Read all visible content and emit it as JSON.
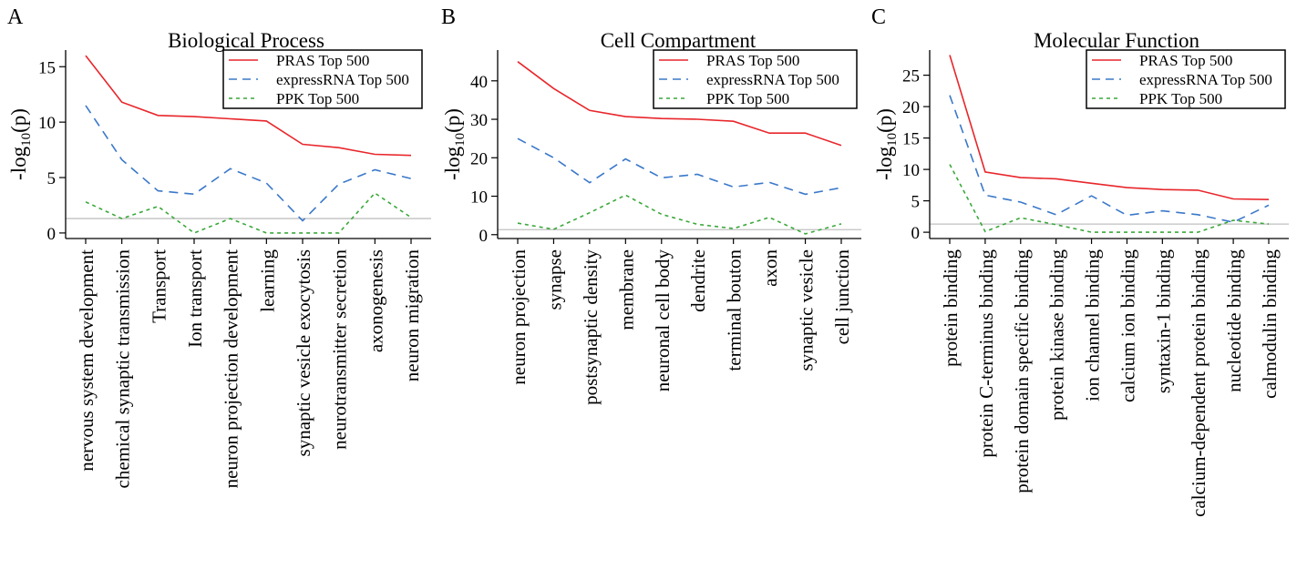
{
  "legend_labels": [
    "PRAS Top 500",
    "expressRNA  Top 500",
    "PPK Top 500"
  ],
  "colors": {
    "PRAS": "#e8262b",
    "expressRNA": "#3a78c9",
    "PPK": "#3aa83a",
    "threshold": "#c0c0c0"
  },
  "chart_data": [
    {
      "type": "line",
      "panel_letter": "A",
      "title": "Biological Process",
      "ylabel_base": "-log",
      "ylabel_sub": "10",
      "ylabel_tail": "(p)",
      "ylim": [
        -0.5,
        16.5
      ],
      "yticks": [
        0,
        5,
        10,
        15
      ],
      "threshold": 1.3,
      "legend": "top-right",
      "categories": [
        "nervous system development",
        "chemical synaptic transmission",
        "Transport",
        "Ion transport",
        "neuron projection development",
        "learning",
        "synaptic vesicle exocytosis",
        "neurotransmitter secretion",
        "axonogenesis",
        "neuron migration"
      ],
      "series": [
        {
          "name": "PRAS Top 500",
          "values": [
            16.0,
            11.8,
            10.6,
            10.5,
            10.3,
            10.1,
            8.0,
            7.7,
            7.1,
            7.0
          ]
        },
        {
          "name": "expressRNA  Top 500",
          "values": [
            11.5,
            6.6,
            3.8,
            3.5,
            5.8,
            4.5,
            1.1,
            4.4,
            5.7,
            4.9
          ]
        },
        {
          "name": "PPK Top 500",
          "values": [
            2.8,
            1.3,
            2.4,
            0.0,
            1.3,
            0.0,
            0.0,
            0.0,
            3.6,
            1.4
          ]
        }
      ]
    },
    {
      "type": "line",
      "panel_letter": "B",
      "title": "Cell Compartment",
      "ylabel_base": "-log",
      "ylabel_sub": "10",
      "ylabel_tail": "(p)",
      "ylim": [
        -1,
        48
      ],
      "yticks": [
        0,
        10,
        20,
        30,
        40
      ],
      "threshold": 1.3,
      "legend": "top-right",
      "categories": [
        "neuron projection",
        "synapse",
        "postsynaptic density",
        "membrane",
        "neuronal cell body",
        "dendrite",
        "terminal bouton",
        "axon",
        "synaptic vesicle",
        "cell junction"
      ],
      "series": [
        {
          "name": "PRAS Top 500",
          "values": [
            45.0,
            38.0,
            32.3,
            30.7,
            30.2,
            30.0,
            29.5,
            26.4,
            26.4,
            23.2
          ]
        },
        {
          "name": "expressRNA  Top 500",
          "values": [
            25.0,
            20.0,
            13.5,
            19.7,
            14.8,
            15.7,
            12.4,
            13.6,
            10.5,
            12.2
          ]
        },
        {
          "name": "PPK Top 500",
          "values": [
            3.0,
            1.4,
            5.7,
            10.3,
            5.3,
            2.7,
            1.6,
            4.5,
            0.2,
            2.8
          ]
        }
      ]
    },
    {
      "type": "line",
      "panel_letter": "C",
      "title": "Molecular Function",
      "ylabel_base": "-log",
      "ylabel_sub": "10",
      "ylabel_tail": "(p)",
      "ylim": [
        -1,
        29
      ],
      "yticks": [
        0,
        5,
        10,
        15,
        20,
        25
      ],
      "threshold": 1.3,
      "legend": "top-right",
      "categories": [
        "protein binding",
        "protein C-terminus binding",
        "protein domain specific binding",
        "protein kinase binding",
        "ion channel binding",
        "calcium ion binding",
        "syntaxin-1 binding",
        "calcium-dependent protein binding",
        "nucleotide binding",
        "calmodulin binding"
      ],
      "series": [
        {
          "name": "PRAS Top 500",
          "values": [
            28.2,
            9.6,
            8.7,
            8.5,
            7.8,
            7.1,
            6.8,
            6.7,
            5.3,
            5.2
          ]
        },
        {
          "name": "expressRNA  Top 500",
          "values": [
            21.8,
            5.9,
            4.8,
            2.8,
            5.8,
            2.7,
            3.4,
            2.8,
            1.6,
            4.3
          ]
        },
        {
          "name": "PPK Top 500",
          "values": [
            10.8,
            0.1,
            2.3,
            1.2,
            0.0,
            0.0,
            0.0,
            0.0,
            1.9,
            1.3
          ]
        }
      ]
    }
  ]
}
